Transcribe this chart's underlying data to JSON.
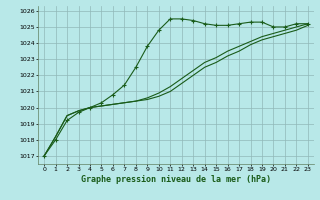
{
  "title": "Graphe pression niveau de la mer (hPa)",
  "background_color": "#b8e8e8",
  "grid_color": "#90b8b8",
  "line_color": "#1a5c1a",
  "xlim": [
    -0.5,
    23.5
  ],
  "ylim": [
    1016.5,
    1026.3
  ],
  "yticks": [
    1017,
    1018,
    1019,
    1020,
    1021,
    1022,
    1023,
    1024,
    1025,
    1026
  ],
  "xticks": [
    0,
    1,
    2,
    3,
    4,
    5,
    6,
    7,
    8,
    9,
    10,
    11,
    12,
    13,
    14,
    15,
    16,
    17,
    18,
    19,
    20,
    21,
    22,
    23
  ],
  "series1": [
    1017.0,
    1018.0,
    1019.2,
    1019.7,
    1020.0,
    1020.3,
    1020.8,
    1021.4,
    1022.5,
    1023.8,
    1024.8,
    1025.5,
    1025.5,
    1025.4,
    1025.2,
    1025.1,
    1025.1,
    1025.2,
    1025.3,
    1025.3,
    1025.0,
    1025.0,
    1025.2,
    1025.2
  ],
  "series2": [
    1017.0,
    1018.2,
    1019.5,
    1019.8,
    1020.0,
    1020.1,
    1020.2,
    1020.3,
    1020.4,
    1020.5,
    1020.7,
    1021.0,
    1021.5,
    1022.0,
    1022.5,
    1022.8,
    1023.2,
    1023.5,
    1023.9,
    1024.2,
    1024.4,
    1024.6,
    1024.8,
    1025.1
  ],
  "series3": [
    1017.0,
    1018.2,
    1019.5,
    1019.8,
    1020.0,
    1020.1,
    1020.2,
    1020.3,
    1020.4,
    1020.6,
    1020.9,
    1021.3,
    1021.8,
    1022.3,
    1022.8,
    1023.1,
    1023.5,
    1023.8,
    1024.1,
    1024.4,
    1024.6,
    1024.8,
    1025.0,
    1025.2
  ],
  "ylabel_fontsize": 4.5,
  "xlabel_fontsize": 6.0,
  "title_fontsize": 6.5
}
